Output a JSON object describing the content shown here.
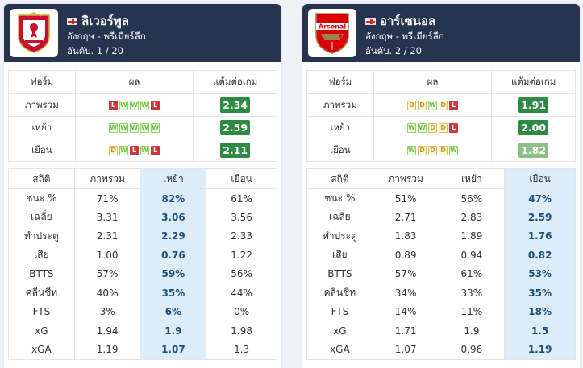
{
  "teams": [
    {
      "name": "ลิเวอร์พูล",
      "logo": "liverpool-crest",
      "country_league": "อังกฤษ - พรีเมียร์ลีก",
      "rank": "อันดับ. 1 / 20",
      "form_headers": [
        "ฟอร์ม",
        "ผล",
        "แต้มต่อเกม"
      ],
      "form_rows": [
        {
          "label": "ภาพรวม",
          "results": [
            "L",
            "W",
            "W",
            "W",
            "L"
          ],
          "ppg": "2.34",
          "ppg_color": "#2f8a44"
        },
        {
          "label": "เหย้า",
          "results": [
            "W",
            "W",
            "W",
            "W",
            "W"
          ],
          "ppg": "2.59",
          "ppg_color": "#2f8a44"
        },
        {
          "label": "เยือน",
          "results": [
            "D",
            "W",
            "L",
            "W",
            "L"
          ],
          "ppg": "2.11",
          "ppg_color": "#2f8a44"
        }
      ],
      "stats_headers": [
        "สถิติ",
        "ภาพรวม",
        "เหย้า",
        "เยือน"
      ],
      "highlight_col": 2,
      "stats_rows": [
        [
          "ชนะ %",
          "71%",
          "82%",
          "61%"
        ],
        [
          "เฉลี่ย",
          "3.31",
          "3.06",
          "3.56"
        ],
        [
          "ทำประตู",
          "2.31",
          "2.29",
          "2.33"
        ],
        [
          "เสีย",
          "1.00",
          "0.76",
          "1.22"
        ],
        [
          "BTTS",
          "57%",
          "59%",
          "56%"
        ],
        [
          "คลีนชีท",
          "40%",
          "35%",
          "44%"
        ],
        [
          "FTS",
          "3%",
          "6%",
          "0%"
        ],
        [
          "xG",
          "1.94",
          "1.9",
          "1.98"
        ],
        [
          "xGA",
          "1.19",
          "1.07",
          "1.3"
        ]
      ]
    },
    {
      "name": "อาร์เซนอล",
      "logo": "arsenal-crest",
      "country_league": "อังกฤษ - พรีเมียร์ลีก",
      "rank": "อันดับ. 2 / 20",
      "form_headers": [
        "ฟอร์ม",
        "ผล",
        "แต้มต่อเกม"
      ],
      "form_rows": [
        {
          "label": "ภาพรวม",
          "results": [
            "D",
            "D",
            "W",
            "D",
            "L"
          ],
          "ppg": "1.91",
          "ppg_color": "#2f8a44"
        },
        {
          "label": "เหย้า",
          "results": [
            "W",
            "W",
            "D",
            "D",
            "L"
          ],
          "ppg": "2.00",
          "ppg_color": "#2f8a44"
        },
        {
          "label": "เยือน",
          "results": [
            "W",
            "D",
            "D",
            "D",
            "W"
          ],
          "ppg": "1.82",
          "ppg_color": "#8fbf88"
        }
      ],
      "stats_headers": [
        "สถิติ",
        "ภาพรวม",
        "เหย้า",
        "เยือน"
      ],
      "highlight_col": 3,
      "stats_rows": [
        [
          "ชนะ %",
          "51%",
          "56%",
          "47%"
        ],
        [
          "เฉลี่ย",
          "2.71",
          "2.83",
          "2.59"
        ],
        [
          "ทำประตู",
          "1.83",
          "1.89",
          "1.76"
        ],
        [
          "เสีย",
          "0.89",
          "0.94",
          "0.82"
        ],
        [
          "BTTS",
          "57%",
          "61%",
          "53%"
        ],
        [
          "คลีนชีท",
          "34%",
          "33%",
          "35%"
        ],
        [
          "FTS",
          "14%",
          "11%",
          "18%"
        ],
        [
          "xG",
          "1.71",
          "1.9",
          "1.5"
        ],
        [
          "xGA",
          "1.07",
          "0.96",
          "1.19"
        ]
      ]
    }
  ]
}
